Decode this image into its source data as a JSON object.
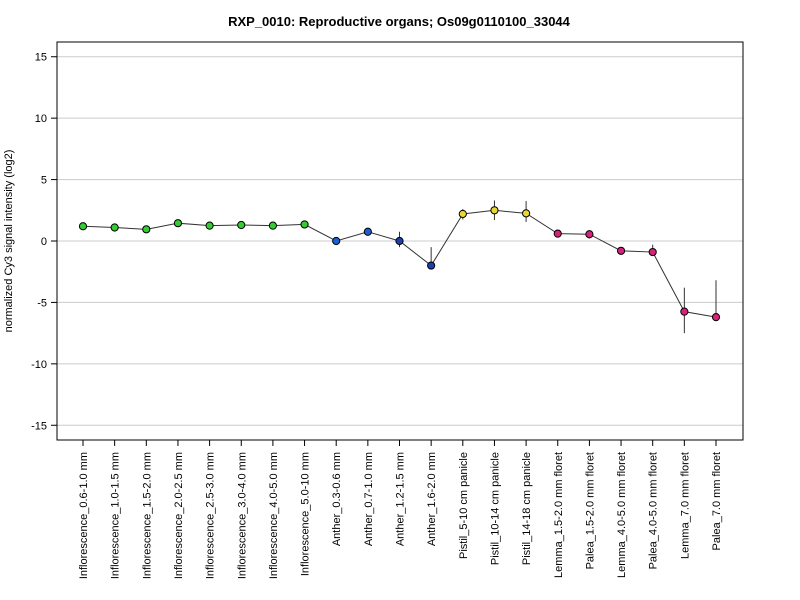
{
  "chart_data": {
    "type": "line",
    "title": "RXP_0010: Reproductive organs; Os09g0110100_33044",
    "xlabel": "",
    "ylabel": "normalized Cy3 signal intensity (log2)",
    "ylim": [
      -16.2,
      16.2
    ],
    "yticks": [
      "15",
      "10",
      "5",
      "0",
      "-5",
      "-10",
      "-15"
    ],
    "ytick_values": [
      15,
      10,
      5,
      0,
      -5,
      -10,
      -15
    ],
    "grid": true,
    "categories": [
      "Inflorescence_0.6-1.0 mm",
      "Inflorescence_1.0-1.5 mm",
      "Inflorescence_1.5-2.0 mm",
      "Inflorescence_2.0-2.5 mm",
      "Inflorescence_2.5-3.0 mm",
      "Inflorescence_3.0-4.0 mm",
      "Inflorescence_4.0-5.0 mm",
      "Inflorescence_5.0-10 mm",
      "Anther_0.3-0.6 mm",
      "Anther_0.7-1.0 mm",
      "Anther_1.2-1.5 mm",
      "Anther_1.6-2.0 mm",
      "Pistil_5-10 cm panicle",
      "Pistil_10-14 cm panicle",
      "Pistil_14-18 cm panicle",
      "Lemma_1.5-2.0 mm floret",
      "Palea_1.5-2.0 mm floret",
      "Lemma_4.0-5.0 mm floret",
      "Palea_4.0-5.0 mm floret",
      "Lemma_7.0 mm floret",
      "Palea_7.0 mm floret"
    ],
    "values": [
      1.2,
      1.1,
      0.95,
      1.45,
      1.25,
      1.3,
      1.25,
      1.35,
      0.0,
      0.75,
      0.0,
      -2.0,
      2.2,
      2.5,
      2.25,
      0.6,
      0.55,
      -0.8,
      -0.9,
      -5.75,
      -6.2
    ],
    "error_low": [
      1.1,
      0.95,
      0.85,
      1.35,
      1.1,
      1.15,
      1.1,
      1.2,
      -0.1,
      0.5,
      -0.5,
      -2.2,
      1.75,
      1.7,
      1.55,
      0.45,
      0.2,
      -0.95,
      -1.2,
      -7.5,
      -6.2
    ],
    "error_high": [
      1.3,
      1.25,
      1.05,
      1.55,
      1.4,
      1.45,
      1.4,
      1.5,
      0.1,
      0.9,
      0.75,
      -0.5,
      2.6,
      3.3,
      3.25,
      0.75,
      0.85,
      -0.65,
      -0.3,
      -3.8,
      -3.2
    ],
    "point_colors": [
      "#33cc33",
      "#33cc33",
      "#33cc33",
      "#33cc33",
      "#33cc33",
      "#33cc33",
      "#33cc33",
      "#33cc33",
      "#1a5fd6",
      "#1a5fd6",
      "#1a3fb0",
      "#1a3fb0",
      "#e8d634",
      "#e8d634",
      "#e8d634",
      "#d6227a",
      "#d6227a",
      "#d6227a",
      "#d6227a",
      "#d6227a",
      "#d6227a"
    ],
    "line_color": "#333333",
    "grid_color": "#cccccc"
  }
}
